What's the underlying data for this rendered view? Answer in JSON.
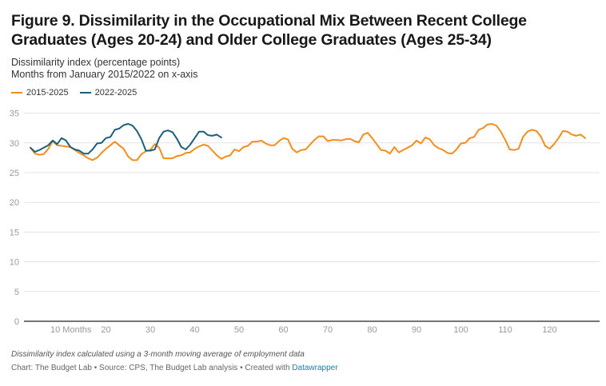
{
  "header": {
    "title": "Figure 9. Dissimilarity in the Occupational Mix Between Recent College Graduates (Ages 20-24) and Older College Graduates (Ages 25-34)",
    "subtitle_line1": "Dissimilarity index (percentage points)",
    "subtitle_line2": "Months from January 2015/2022 on x-axis"
  },
  "footer": {
    "note": "Dissimilarity index calculated using a 3-month moving average of employment data",
    "credit_prefix": "Chart: The Budget Lab • Source: CPS, The Budget Lab analysis • Created with ",
    "credit_link": "Datawrapper"
  },
  "chart_data": {
    "type": "line",
    "title": "Figure 9. Dissimilarity in the Occupational Mix Between Recent College Graduates (Ages 20-24) and Older College Graduates (Ages 25-34)",
    "xlabel": "Months from January 2015/2022",
    "ylabel": "Dissimilarity index (percentage points)",
    "xlim": [
      1,
      130
    ],
    "ylim": [
      0,
      35
    ],
    "grid": true,
    "legend_position": "top-left",
    "x_ticks": [
      {
        "value": 10,
        "label": "10 Months"
      },
      {
        "value": 20,
        "label": "20"
      },
      {
        "value": 30,
        "label": "30"
      },
      {
        "value": 40,
        "label": "40"
      },
      {
        "value": 50,
        "label": "50"
      },
      {
        "value": 60,
        "label": "60"
      },
      {
        "value": 70,
        "label": "70"
      },
      {
        "value": 80,
        "label": "80"
      },
      {
        "value": 90,
        "label": "90"
      },
      {
        "value": 100,
        "label": "100"
      },
      {
        "value": 110,
        "label": "110"
      },
      {
        "value": 120,
        "label": "120"
      }
    ],
    "y_ticks": [
      0,
      5,
      10,
      15,
      20,
      25,
      30,
      35
    ],
    "series": [
      {
        "name": "2015-2025",
        "color": "#f28e1c",
        "x_start": 3,
        "values": [
          29.2,
          28.2,
          28.0,
          28.1,
          29.0,
          30.3,
          29.6,
          29.5,
          29.4,
          29.3,
          28.8,
          28.3,
          27.9,
          27.4,
          27.1,
          27.5,
          28.3,
          29.0,
          29.6,
          30.2,
          29.6,
          29.0,
          27.7,
          27.1,
          27.1,
          28.1,
          28.6,
          28.8,
          29.8,
          29.2,
          27.4,
          27.4,
          27.4,
          27.8,
          27.9,
          28.3,
          28.4,
          29.0,
          29.4,
          29.7,
          29.5,
          28.7,
          27.9,
          27.3,
          27.7,
          27.9,
          28.9,
          28.6,
          29.3,
          29.5,
          30.2,
          30.2,
          30.4,
          29.9,
          29.6,
          29.6,
          30.3,
          30.8,
          30.6,
          29.0,
          28.4,
          28.8,
          28.9,
          29.7,
          30.5,
          31.1,
          31.1,
          30.3,
          30.5,
          30.5,
          30.4,
          30.6,
          30.7,
          30.3,
          30.1,
          31.4,
          31.7,
          30.8,
          29.8,
          28.8,
          28.7,
          28.2,
          29.3,
          28.4,
          28.8,
          29.2,
          29.6,
          30.4,
          29.9,
          30.9,
          30.6,
          29.6,
          29.1,
          28.8,
          28.3,
          28.2,
          28.9,
          29.9,
          30.0,
          30.8,
          31.0,
          32.2,
          32.5,
          33.1,
          33.2,
          32.9,
          31.9,
          30.5,
          28.9,
          28.8,
          29.0,
          31.0,
          31.9,
          32.2,
          32.0,
          31.1,
          29.5,
          29.0,
          29.8,
          30.8,
          32.0,
          31.9,
          31.4,
          31.2,
          31.4,
          30.8
        ]
      },
      {
        "name": "2022-2025",
        "color": "#1c5f78",
        "x_start": 3,
        "values": [
          29.2,
          28.5,
          28.8,
          29.2,
          29.6,
          30.4,
          29.8,
          30.8,
          30.4,
          29.3,
          28.9,
          28.7,
          28.2,
          28.2,
          28.9,
          29.9,
          30.0,
          30.8,
          31.0,
          32.2,
          32.4,
          33.0,
          33.2,
          32.9,
          32.0,
          30.6,
          28.7,
          28.7,
          28.9,
          30.8,
          31.9,
          32.1,
          31.8,
          30.7,
          29.3,
          28.9,
          29.7,
          30.8,
          31.9,
          31.9,
          31.3,
          31.2,
          31.4,
          30.9
        ]
      }
    ]
  }
}
